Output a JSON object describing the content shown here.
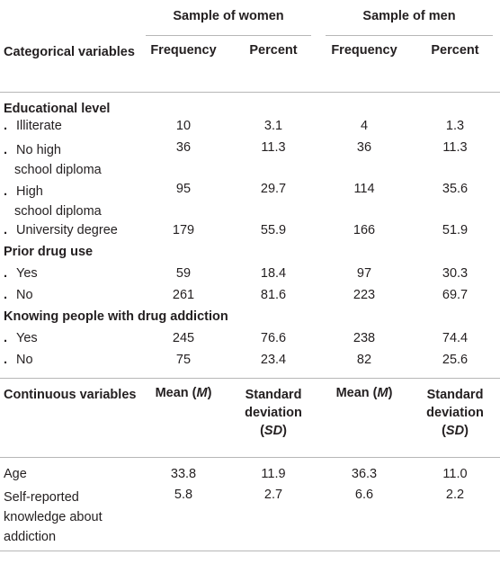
{
  "header": {
    "women_group": "Sample of women",
    "men_group": "Sample of men",
    "categorical_label": "Categorical variables",
    "frequency_label": "Frequency",
    "percent_label": "Percent"
  },
  "sections": {
    "education": {
      "title": "Educational level",
      "rows": [
        {
          "label": "Illiterate",
          "label2": "",
          "wf": "10",
          "wp": "3.1",
          "mf": "4",
          "mp": "1.3"
        },
        {
          "label": "No high",
          "label2": "school diploma",
          "wf": "36",
          "wp": "11.3",
          "mf": "36",
          "mp": "11.3"
        },
        {
          "label": "High",
          "label2": "school diploma",
          "wf": "95",
          "wp": "29.7",
          "mf": "114",
          "mp": "35.6"
        },
        {
          "label": "University degree",
          "label2": "",
          "wf": "179",
          "wp": "55.9",
          "mf": "166",
          "mp": "51.9"
        }
      ]
    },
    "drug_use": {
      "title": "Prior drug use",
      "rows": [
        {
          "label": "Yes",
          "wf": "59",
          "wp": "18.4",
          "mf": "97",
          "mp": "30.3"
        },
        {
          "label": "No",
          "wf": "261",
          "wp": "81.6",
          "mf": "223",
          "mp": "69.7"
        }
      ]
    },
    "knowing": {
      "title": "Knowing people with drug addiction",
      "rows": [
        {
          "label": "Yes",
          "wf": "245",
          "wp": "76.6",
          "mf": "238",
          "mp": "74.4"
        },
        {
          "label": "No",
          "wf": "75",
          "wp": "23.4",
          "mf": "82",
          "mp": "25.6"
        }
      ]
    }
  },
  "continuous_header": {
    "label": "Continuous variables",
    "mean": "Mean (M)",
    "sd_line1": "Standard",
    "sd_line2": "deviation",
    "sd_line3": "(SD)"
  },
  "continuous_rows": [
    {
      "label": "Age",
      "wm": "33.8",
      "wsd": "11.9",
      "mm": "36.3",
      "msd": "11.0"
    },
    {
      "label": "Self-reported knowledge about addiction",
      "wm": "5.8",
      "wsd": "2.7",
      "mm": "6.6",
      "msd": "2.2"
    }
  ],
  "bullet": "."
}
